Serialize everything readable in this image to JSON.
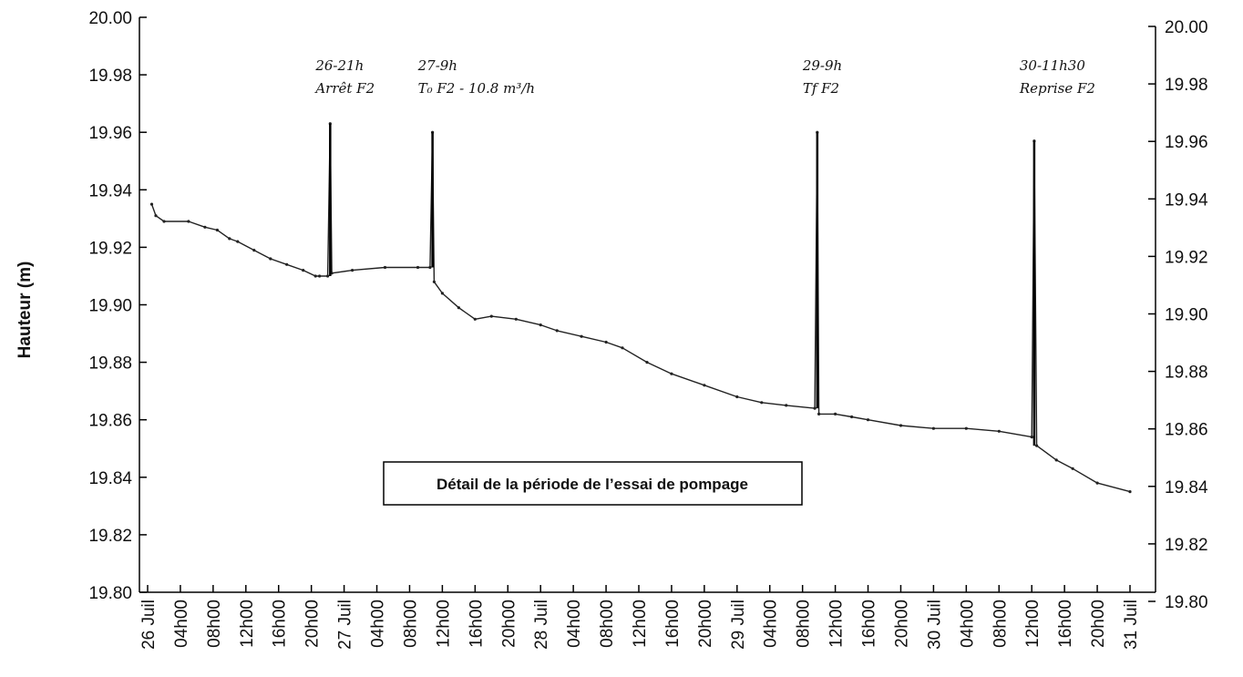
{
  "chart_data": {
    "type": "line",
    "ylabel": "Hauteur (m)",
    "xlabel": "",
    "title": "",
    "ylim": [
      19.8,
      20.0
    ],
    "yticks": [
      "19.80",
      "19.82",
      "19.84",
      "19.86",
      "19.88",
      "19.90",
      "19.92",
      "19.94",
      "19.96",
      "19.98",
      "20.00"
    ],
    "xlim_hours": [
      0,
      120
    ],
    "xticks": [
      {
        "h": 0,
        "label": "26 Juil"
      },
      {
        "h": 4,
        "label": "04h00"
      },
      {
        "h": 8,
        "label": "08h00"
      },
      {
        "h": 12,
        "label": "12h00"
      },
      {
        "h": 16,
        "label": "16h00"
      },
      {
        "h": 20,
        "label": "20h00"
      },
      {
        "h": 24,
        "label": "27 Juil"
      },
      {
        "h": 28,
        "label": "04h00"
      },
      {
        "h": 32,
        "label": "08h00"
      },
      {
        "h": 36,
        "label": "12h00"
      },
      {
        "h": 40,
        "label": "16h00"
      },
      {
        "h": 44,
        "label": "20h00"
      },
      {
        "h": 48,
        "label": "28 Juil"
      },
      {
        "h": 52,
        "label": "04h00"
      },
      {
        "h": 56,
        "label": "08h00"
      },
      {
        "h": 60,
        "label": "12h00"
      },
      {
        "h": 64,
        "label": "16h00"
      },
      {
        "h": 68,
        "label": "20h00"
      },
      {
        "h": 72,
        "label": "29 Juil"
      },
      {
        "h": 76,
        "label": "04h00"
      },
      {
        "h": 80,
        "label": "08h00"
      },
      {
        "h": 84,
        "label": "12h00"
      },
      {
        "h": 88,
        "label": "16h00"
      },
      {
        "h": 92,
        "label": "20h00"
      },
      {
        "h": 96,
        "label": "30 Juil"
      },
      {
        "h": 100,
        "label": "04h00"
      },
      {
        "h": 104,
        "label": "08h00"
      },
      {
        "h": 108,
        "label": "12h00"
      },
      {
        "h": 112,
        "label": "16h00"
      },
      {
        "h": 116,
        "label": "20h00"
      },
      {
        "h": 120,
        "label": "31 Juil"
      }
    ],
    "series": [
      {
        "points": [
          [
            0.5,
            19.935
          ],
          [
            1,
            19.931
          ],
          [
            2,
            19.929
          ],
          [
            5,
            19.929
          ],
          [
            7,
            19.927
          ],
          [
            8.5,
            19.926
          ],
          [
            10,
            19.923
          ],
          [
            11,
            19.922
          ],
          [
            13,
            19.919
          ],
          [
            15,
            19.916
          ],
          [
            17,
            19.914
          ],
          [
            19,
            19.912
          ],
          [
            20.5,
            19.91
          ],
          [
            21,
            19.91
          ],
          [
            22,
            19.91
          ],
          [
            22.3,
            19.963
          ],
          [
            22.5,
            19.911
          ],
          [
            25,
            19.912
          ],
          [
            29,
            19.913
          ],
          [
            33,
            19.913
          ],
          [
            34.5,
            19.913
          ],
          [
            34.8,
            19.96
          ],
          [
            35,
            19.908
          ],
          [
            36,
            19.904
          ],
          [
            38,
            19.899
          ],
          [
            40,
            19.895
          ],
          [
            42,
            19.896
          ],
          [
            45,
            19.895
          ],
          [
            48,
            19.893
          ],
          [
            50,
            19.891
          ],
          [
            53,
            19.889
          ],
          [
            56,
            19.887
          ],
          [
            58,
            19.885
          ],
          [
            61,
            19.88
          ],
          [
            64,
            19.876
          ],
          [
            68,
            19.872
          ],
          [
            72,
            19.868
          ],
          [
            75,
            19.866
          ],
          [
            78,
            19.865
          ],
          [
            81.5,
            19.864
          ],
          [
            81.8,
            19.96
          ],
          [
            82,
            19.862
          ],
          [
            84,
            19.862
          ],
          [
            86,
            19.861
          ],
          [
            88,
            19.86
          ],
          [
            92,
            19.858
          ],
          [
            96,
            19.857
          ],
          [
            100,
            19.857
          ],
          [
            104,
            19.856
          ],
          [
            108,
            19.854
          ],
          [
            108.3,
            19.957
          ],
          [
            108.6,
            19.851
          ],
          [
            111,
            19.846
          ],
          [
            113,
            19.843
          ],
          [
            116,
            19.838
          ],
          [
            120,
            19.835
          ]
        ]
      }
    ],
    "annotations": [
      {
        "h": 22.3,
        "y_top": 19.963,
        "y_bottom": 19.91,
        "text_lines": [
          "26-21h",
          "Arrêt F2"
        ]
      },
      {
        "h": 34.8,
        "y_top": 19.96,
        "y_bottom": 19.913,
        "text_lines": [
          "27-9h",
          "T₀ F2 - 10.8 m³/h"
        ]
      },
      {
        "h": 81.8,
        "y_top": 19.96,
        "y_bottom": 19.864,
        "text_lines": [
          "29-9h",
          "Tf F2"
        ]
      },
      {
        "h": 108.3,
        "y_top": 19.957,
        "y_bottom": 19.851,
        "text_lines": [
          "30-11h30",
          "Reprise F2"
        ]
      }
    ],
    "note": "Détail de la période de l’essai de pompage",
    "grid": false,
    "colors": {
      "line": "#222222",
      "axis": "#000000",
      "background": "#ffffff"
    }
  }
}
